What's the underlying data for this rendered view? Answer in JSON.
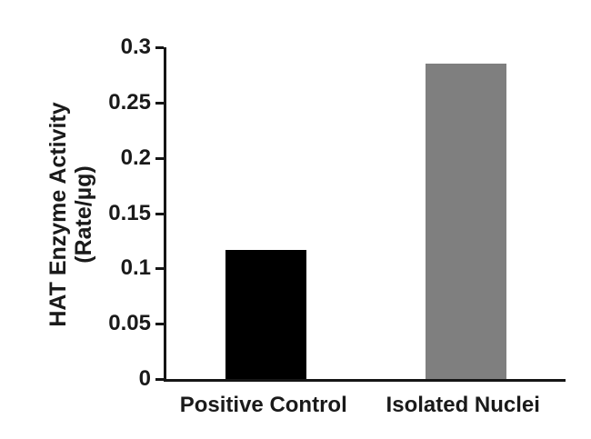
{
  "chart_data": {
    "type": "bar",
    "categories": [
      "Positive Control",
      "Isolated Nuclei"
    ],
    "values": [
      0.117,
      0.285
    ],
    "bar_colors": [
      "#000000",
      "#7f7f7f"
    ],
    "ylabel": "HAT Enzyme Activity (Rate/µg)",
    "ylabel_lines": [
      "HAT Enzyme Activity",
      "(Rate/µg)"
    ],
    "xlabel": "",
    "title": "",
    "ylim": [
      0,
      0.3
    ],
    "yticks": [
      {
        "value": 0,
        "label": "0"
      },
      {
        "value": 0.05,
        "label": "0.05"
      },
      {
        "value": 0.1,
        "label": "0.1"
      },
      {
        "value": 0.15,
        "label": "0.15"
      },
      {
        "value": 0.2,
        "label": "0.2"
      },
      {
        "value": 0.25,
        "label": "0.25"
      },
      {
        "value": 0.3,
        "label": "0.3"
      }
    ],
    "grid": false,
    "legend": "none",
    "axis_color": "#151515",
    "background_color": "#ffffff"
  }
}
